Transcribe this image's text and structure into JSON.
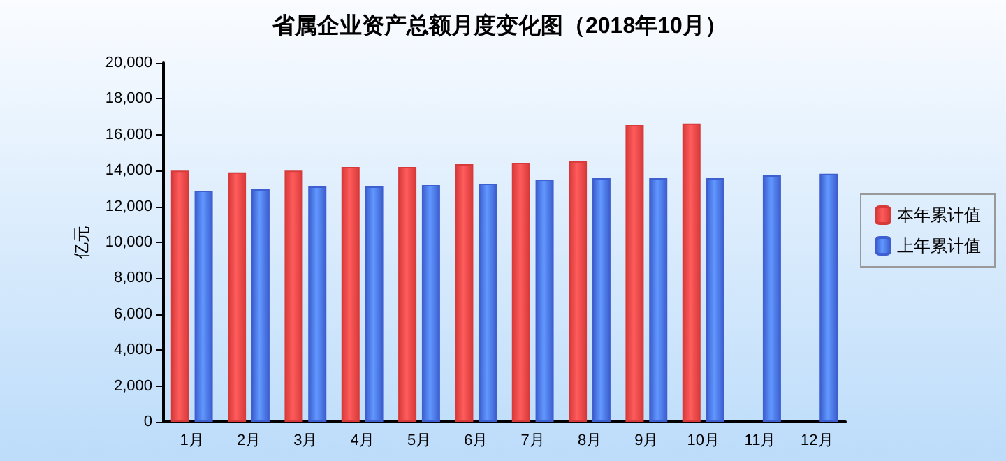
{
  "chart_data": {
    "type": "bar",
    "title": "省属企业资产总额月度变化图（2018年10月）",
    "ylabel": "亿元",
    "categories": [
      "1月",
      "2月",
      "3月",
      "4月",
      "5月",
      "6月",
      "7月",
      "8月",
      "9月",
      "10月",
      "11月",
      "12月"
    ],
    "series": [
      {
        "name": "本年累计值",
        "color": "#d83a3a",
        "values": [
          14000,
          13900,
          14000,
          14200,
          14200,
          14360,
          14440,
          14520,
          16540,
          16620,
          null,
          null
        ]
      },
      {
        "name": "上年累计值",
        "color": "#3d5fd0",
        "values": [
          12880,
          12960,
          13110,
          13110,
          13190,
          13270,
          13500,
          13580,
          13580,
          13580,
          13740,
          13820
        ]
      }
    ],
    "ylim": [
      0,
      20000
    ],
    "yticks": [
      0,
      {
        "value": 2000,
        "label": "2,000"
      },
      {
        "value": 4000,
        "label": "4,000"
      },
      {
        "value": 6000,
        "label": "6,000"
      },
      {
        "value": 8000,
        "label": "8,000"
      },
      {
        "value": 10000,
        "label": "10,000"
      },
      {
        "value": 12000,
        "label": "12,000"
      },
      {
        "value": 14000,
        "label": "14,000"
      },
      {
        "value": 16000,
        "label": "16,000"
      },
      {
        "value": 18000,
        "label": "18,000"
      },
      {
        "value": 20000,
        "label": "20,000"
      }
    ],
    "grid": false,
    "legend": "right"
  }
}
